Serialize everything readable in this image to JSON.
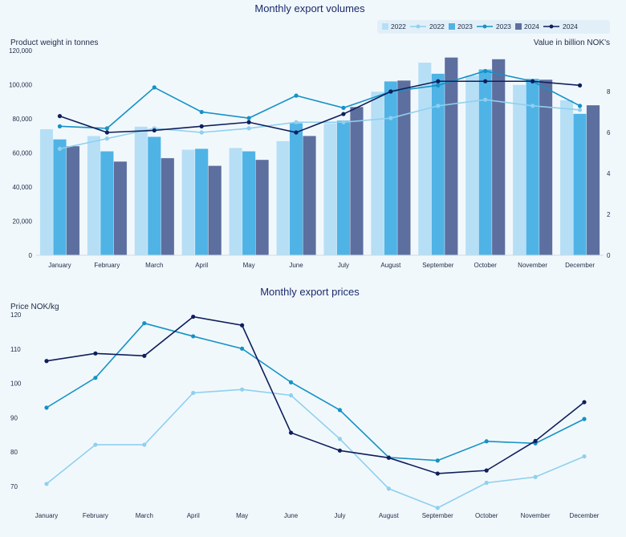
{
  "colors": {
    "bar2022": "#b6dff6",
    "bar2023": "#4fb3e6",
    "bar2024": "#5d6f9f",
    "line2022": "#8fd0ee",
    "line2023": "#1592c5",
    "line2024": "#0f1f5c",
    "background": "#f1f8fc",
    "legendBg": "#e2eff8"
  },
  "chart_data": [
    {
      "type": "bar",
      "title": "Monthly export volumes",
      "ylabel": "Product weight in tonnes",
      "y2label": "Value in billion NOK's",
      "categories": [
        "January",
        "February",
        "March",
        "April",
        "May",
        "June",
        "July",
        "August",
        "September",
        "October",
        "November",
        "December"
      ],
      "ylim": [
        0,
        120000
      ],
      "yticks": [
        0,
        20000,
        40000,
        60000,
        80000,
        100000,
        120000
      ],
      "ytick_labels": [
        "0",
        "20,000",
        "40,000",
        "60,000",
        "80,000",
        "100,000",
        "120,000"
      ],
      "y2lim": [
        0,
        10
      ],
      "y2ticks": [
        0,
        2,
        4,
        6,
        8
      ],
      "y2tick_labels": [
        "0",
        "2",
        "4",
        "6",
        "8"
      ],
      "legend_position": "top-right",
      "legend": [
        {
          "label": "2022",
          "kind": "bar",
          "color_key": "bar2022"
        },
        {
          "label": "2022",
          "kind": "line",
          "color_key": "line2022"
        },
        {
          "label": "2023",
          "kind": "bar",
          "color_key": "bar2023"
        },
        {
          "label": "2023",
          "kind": "line",
          "color_key": "line2023"
        },
        {
          "label": "2024",
          "kind": "bar",
          "color_key": "bar2024"
        },
        {
          "label": "2024",
          "kind": "line",
          "color_key": "line2024"
        }
      ],
      "series": [
        {
          "name": "2022",
          "kind": "bar",
          "axis": "left",
          "color_key": "bar2022",
          "values": [
            74000,
            70000,
            75500,
            62000,
            63000,
            67000,
            77500,
            96000,
            113000,
            105500,
            100000,
            91000
          ]
        },
        {
          "name": "2023",
          "kind": "bar",
          "axis": "left",
          "color_key": "bar2023",
          "values": [
            68000,
            61000,
            69500,
            62500,
            61000,
            77500,
            79000,
            102000,
            106500,
            109000,
            103500,
            83000
          ]
        },
        {
          "name": "2024",
          "kind": "bar",
          "axis": "left",
          "color_key": "bar2024",
          "values": [
            64000,
            55000,
            57000,
            52500,
            56000,
            70000,
            87000,
            102500,
            116000,
            115000,
            103000,
            88000
          ]
        },
        {
          "name": "2022",
          "kind": "line",
          "axis": "right",
          "color_key": "line2022",
          "values": [
            5.2,
            5.7,
            6.2,
            6.0,
            6.2,
            6.5,
            6.5,
            6.7,
            7.3,
            7.6,
            7.3,
            7.1
          ]
        },
        {
          "name": "2023",
          "kind": "line",
          "axis": "right",
          "color_key": "line2023",
          "values": [
            6.3,
            6.2,
            8.2,
            7.0,
            6.7,
            7.8,
            7.2,
            8.0,
            8.3,
            9.0,
            8.5,
            7.3
          ]
        },
        {
          "name": "2024",
          "kind": "line",
          "axis": "right",
          "color_key": "line2024",
          "values": [
            6.8,
            6.0,
            6.1,
            6.3,
            6.5,
            6.0,
            6.9,
            8.0,
            8.5,
            8.5,
            8.5,
            8.3
          ]
        }
      ]
    },
    {
      "type": "line",
      "title": "Monthly export prices",
      "ylabel": "Price NOK/kg",
      "categories": [
        "January",
        "February",
        "March",
        "April",
        "May",
        "June",
        "July",
        "August",
        "September",
        "October",
        "November",
        "December"
      ],
      "ylim": [
        62,
        120
      ],
      "yticks": [
        70,
        80,
        90,
        100,
        110,
        120
      ],
      "ytick_labels": [
        "70",
        "80",
        "90",
        "100",
        "110",
        "120"
      ],
      "series": [
        {
          "name": "2022",
          "color_key": "line2022",
          "values": [
            70.7,
            82.1,
            82.1,
            97.2,
            98.2,
            96.5,
            83.8,
            69.3,
            63.7,
            71.0,
            72.7,
            78.7
          ]
        },
        {
          "name": "2023",
          "color_key": "line2023",
          "values": [
            92.9,
            101.6,
            117.5,
            113.7,
            110.1,
            100.3,
            92.2,
            78.4,
            77.5,
            83.1,
            82.5,
            89.6
          ]
        },
        {
          "name": "2024",
          "color_key": "line2024",
          "values": [
            106.5,
            108.7,
            108.0,
            119.4,
            116.9,
            85.6,
            80.4,
            78.3,
            73.7,
            74.6,
            83.2,
            94.5
          ]
        }
      ]
    }
  ]
}
